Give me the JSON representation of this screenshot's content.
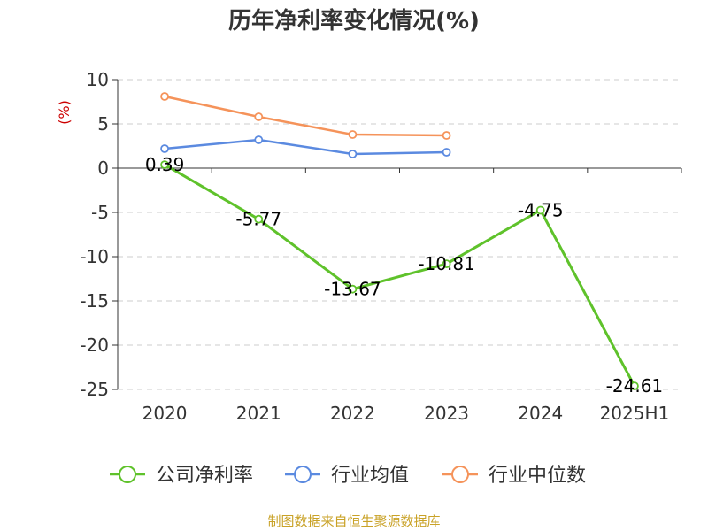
{
  "chart_data": {
    "type": "line",
    "title": "历年净利率变化情况(%)",
    "ylabel": "(%)",
    "categories": [
      "2020",
      "2021",
      "2022",
      "2023",
      "2024",
      "2025H1"
    ],
    "ylim": [
      -25,
      10
    ],
    "yticks": [
      10,
      5,
      0,
      -5,
      -10,
      -15,
      -20,
      -25
    ],
    "grid": true,
    "legend_position": "bottom",
    "series": [
      {
        "name": "公司净利率",
        "color": "#5fc22b",
        "values": [
          0.39,
          -5.77,
          -13.67,
          -10.81,
          -4.75,
          -24.61
        ],
        "labels": [
          "0.39",
          "-5.77",
          "-13.67",
          "-10.81",
          "-4.75",
          "-24.61"
        ]
      },
      {
        "name": "行业均值",
        "color": "#5b8ae0",
        "values": [
          2.2,
          3.2,
          1.6,
          1.8,
          null,
          null
        ]
      },
      {
        "name": "行业中位数",
        "color": "#f5935a",
        "values": [
          8.1,
          5.8,
          3.8,
          3.7,
          null,
          null
        ]
      }
    ]
  },
  "source": "制图数据来自恒生聚源数据库"
}
